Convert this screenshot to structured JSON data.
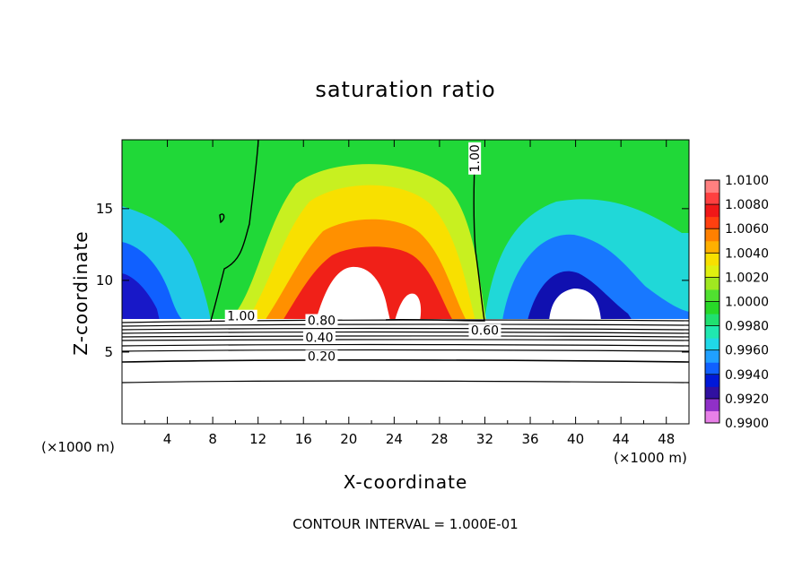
{
  "chart_data": {
    "type": "heatmap",
    "title": "saturation ratio",
    "xlabel": "X-coordinate",
    "ylabel": "Z-coordinate",
    "x_unit": "(×1000 m)",
    "y_unit": "(×1000 m)",
    "xlim": [
      0,
      50
    ],
    "ylim": [
      0,
      19.8
    ],
    "x_ticks": [
      4,
      8,
      12,
      16,
      20,
      24,
      28,
      32,
      36,
      40,
      44,
      48
    ],
    "y_ticks": [
      5,
      10,
      15
    ],
    "footer": "CONTOUR INTERVAL = 1.000E-01",
    "colorbar": {
      "labels": [
        "1.0100",
        "1.0080",
        "1.0060",
        "1.0040",
        "1.0020",
        "1.0000",
        "0.9980",
        "0.9960",
        "0.9940",
        "0.9920",
        "0.9900"
      ],
      "min": 0.99,
      "max": 1.01,
      "colors": [
        "#e880e8",
        "#9030c8",
        "#3010a0",
        "#0018d8",
        "#1060ff",
        "#20a0ff",
        "#20d8e8",
        "#20e8b0",
        "#20e070",
        "#28d828",
        "#50e030",
        "#a0e820",
        "#e0f010",
        "#f8e000",
        "#ffb000",
        "#ff8000",
        "#ff4010",
        "#f01818",
        "#ff4040",
        "#ff8080"
      ]
    },
    "contour_labels": [
      {
        "text": "1.00",
        "x": 10.5,
        "z": 7.2
      },
      {
        "text": "0.80",
        "x": 17.6,
        "z": 6.9
      },
      {
        "text": "0.40",
        "x": 17.4,
        "z": 5.7
      },
      {
        "text": "0.20",
        "x": 17.6,
        "z": 4.4
      },
      {
        "text": "0.60",
        "x": 32.0,
        "z": 6.2
      },
      {
        "text": "1.00",
        "x": 31.5,
        "z": 18.5
      }
    ]
  }
}
